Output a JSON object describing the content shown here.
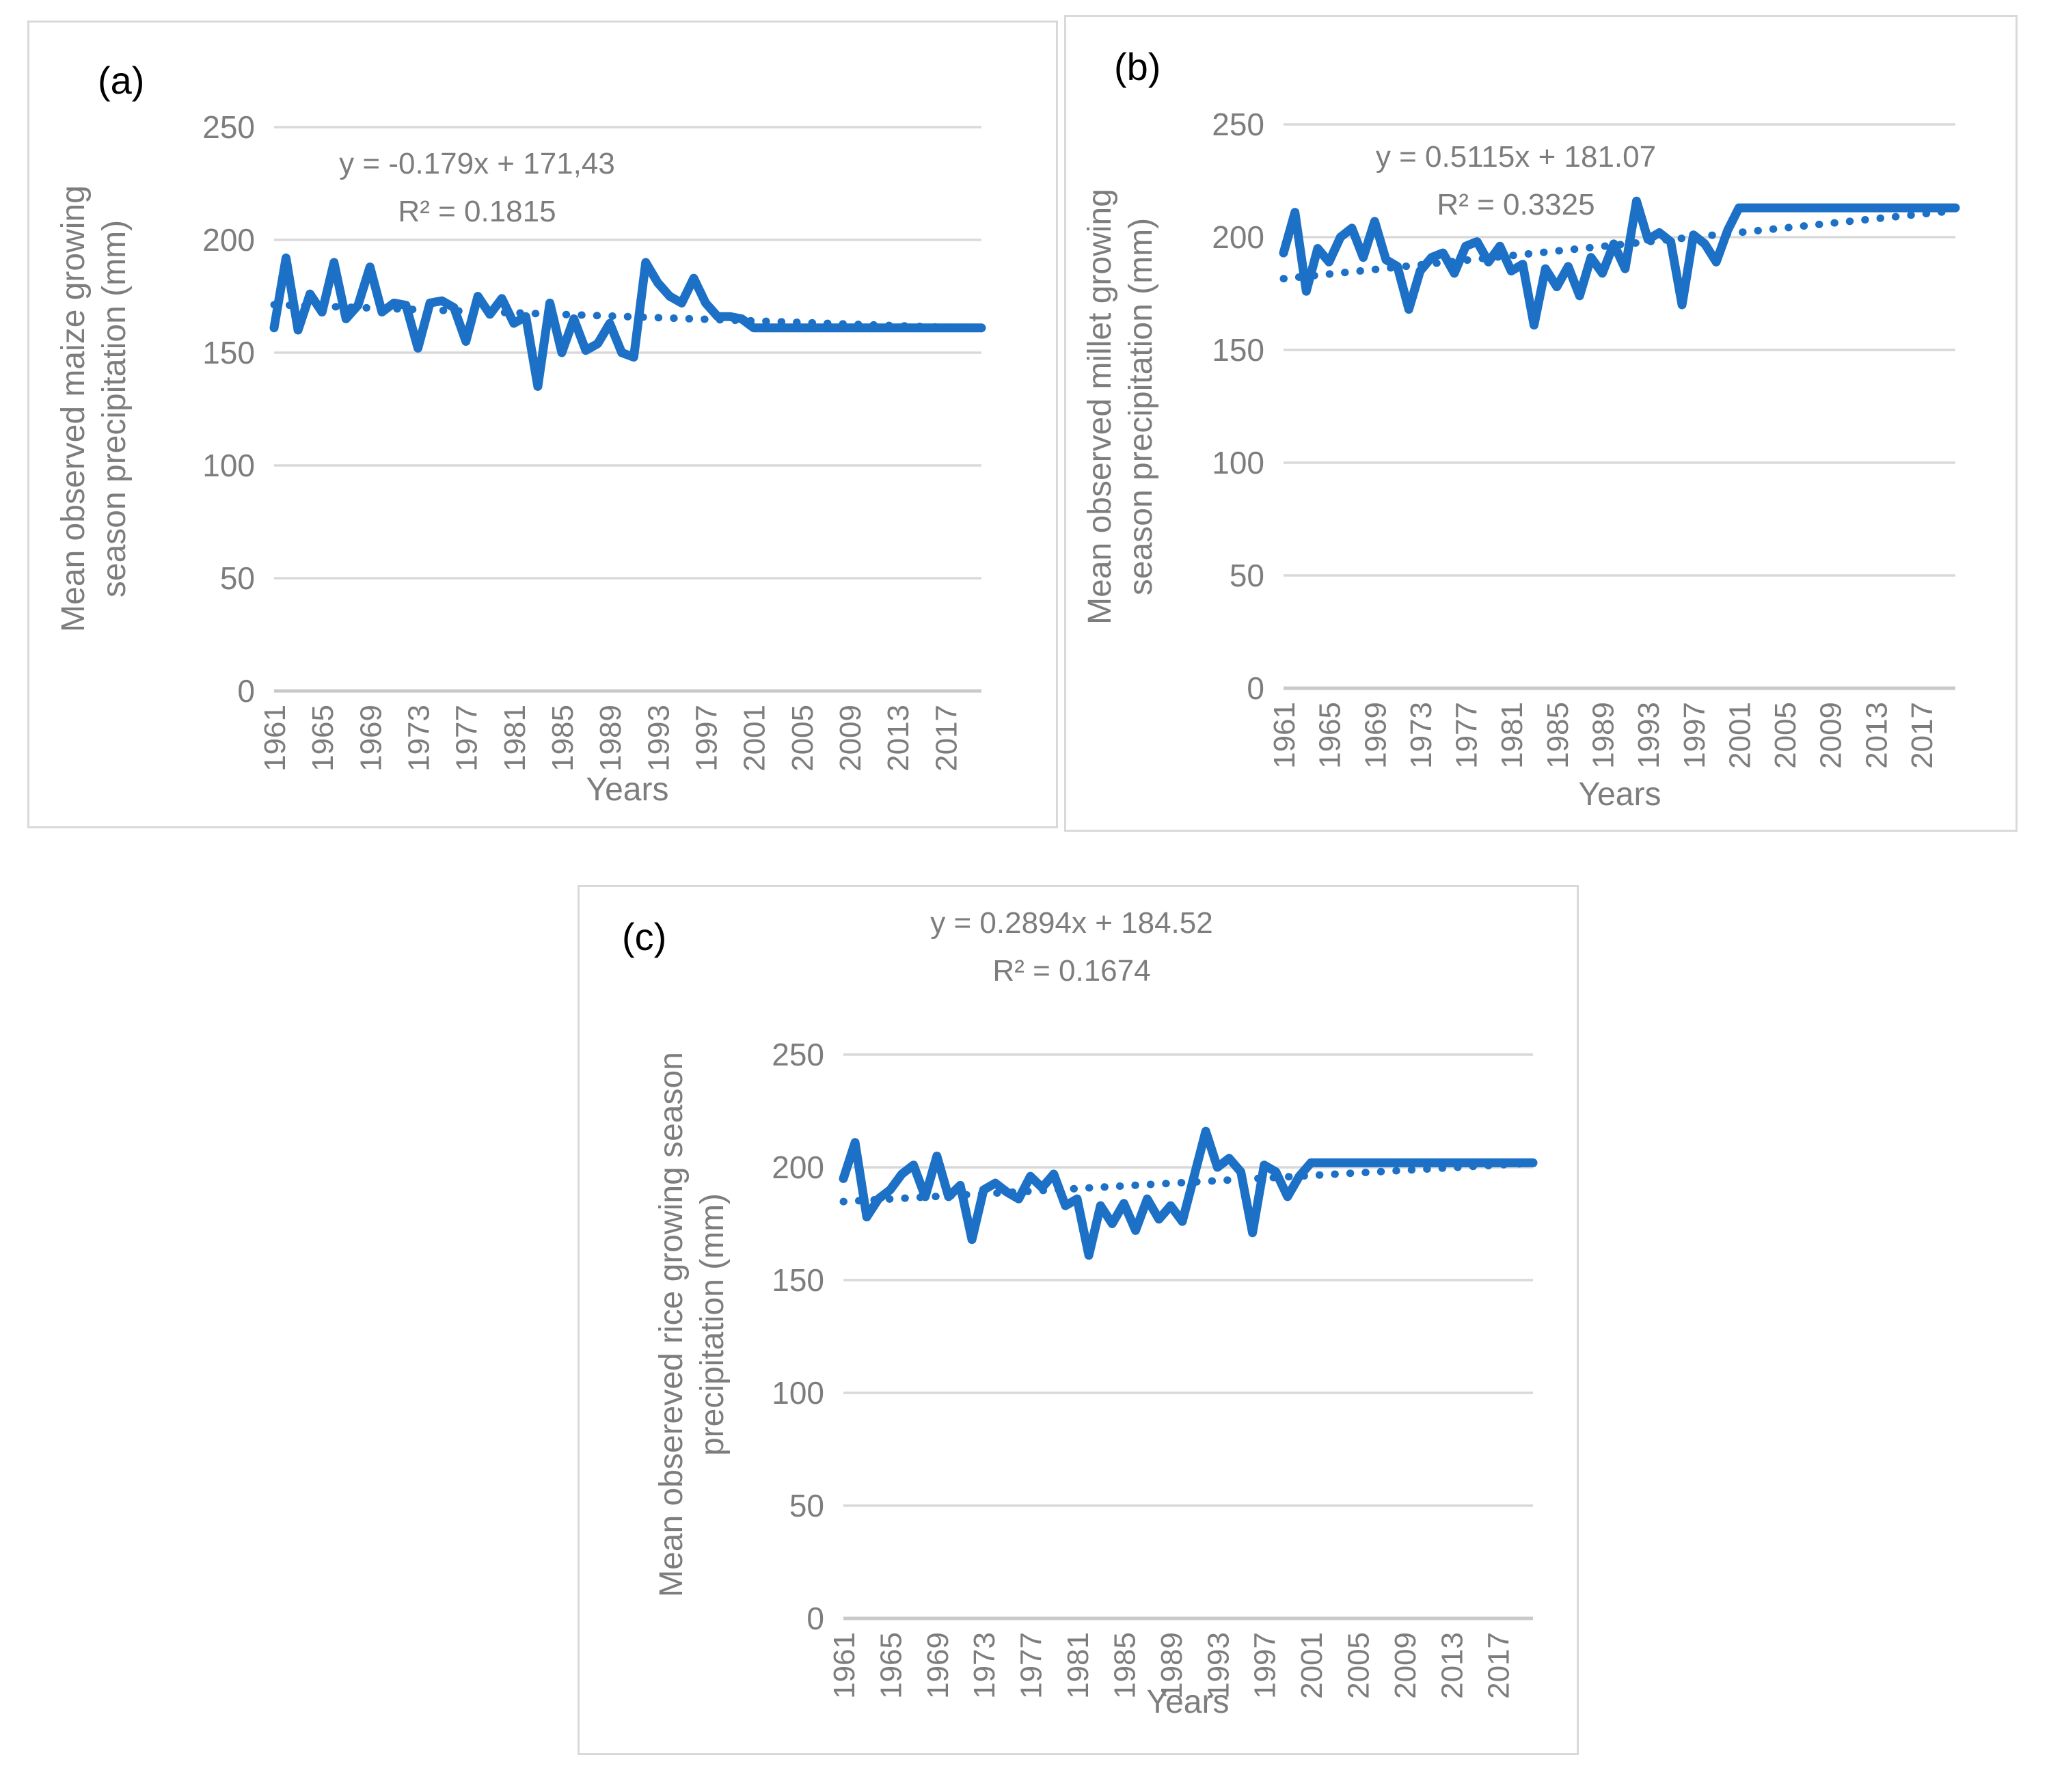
{
  "figure": {
    "background": "#ffffff",
    "panel_border_color": "#d9d9d9"
  },
  "chart_data": [
    {
      "type": "line",
      "panel_label": "(a)",
      "equation": "y = -0.179x + 171,43",
      "r_squared": "R² = 0.1815",
      "xlabel": "Years",
      "ylabel_lines": [
        "Mean observed maize growing",
        "season precipitation (mm)"
      ],
      "x_start": 1961,
      "x_end": 2020,
      "xticks": [
        1961,
        1965,
        1969,
        1973,
        1977,
        1981,
        1985,
        1989,
        1993,
        1997,
        2001,
        2005,
        2009,
        2013,
        2017
      ],
      "yticks": [
        0,
        50,
        100,
        150,
        200,
        250
      ],
      "ylim": [
        0,
        250
      ],
      "grid": true,
      "legend": "none",
      "line_color": "#1c70c5",
      "trend_color": "#1c70c5",
      "grid_color": "#d9d9d9",
      "axis_color": "#c9c9c9",
      "text_color": "#7d7d7d",
      "trend": {
        "slope": -0.179,
        "intercept": 171.43
      },
      "values": [
        161,
        192,
        160,
        176,
        168,
        190,
        165,
        171,
        188,
        168,
        172,
        171,
        152,
        172,
        173,
        170,
        155,
        175,
        167,
        174,
        163,
        166,
        135,
        172,
        150,
        165,
        151,
        154,
        163,
        150,
        148,
        190,
        181,
        175,
        172,
        183,
        172,
        166,
        166,
        165,
        161,
        161,
        161,
        161,
        161,
        161,
        161,
        161,
        161,
        161,
        161,
        161,
        161,
        161,
        161,
        161,
        161,
        161,
        161,
        161
      ]
    },
    {
      "type": "line",
      "panel_label": "(b)",
      "equation": "y = 0.5115x + 181.07",
      "r_squared": "R² = 0.3325",
      "xlabel": "Years",
      "ylabel_lines": [
        "Mean observed millet growing",
        "season precipitation (mm)"
      ],
      "x_start": 1961,
      "x_end": 2020,
      "xticks": [
        1961,
        1965,
        1969,
        1973,
        1977,
        1981,
        1985,
        1989,
        1993,
        1997,
        2001,
        2005,
        2009,
        2013,
        2017
      ],
      "yticks": [
        0,
        50,
        100,
        150,
        200,
        250
      ],
      "ylim": [
        0,
        250
      ],
      "grid": true,
      "legend": "none",
      "line_color": "#1c70c5",
      "trend_color": "#1c70c5",
      "grid_color": "#d9d9d9",
      "axis_color": "#c9c9c9",
      "text_color": "#7d7d7d",
      "trend": {
        "slope": 0.5115,
        "intercept": 181.07
      },
      "values": [
        193,
        211,
        176,
        195,
        189,
        200,
        204,
        191,
        207,
        190,
        187,
        168,
        185,
        191,
        193,
        184,
        196,
        198,
        189,
        196,
        185,
        188,
        161,
        186,
        178,
        187,
        174,
        191,
        184,
        197,
        186,
        216,
        199,
        202,
        198,
        170,
        201,
        197,
        189,
        203,
        213,
        213,
        213,
        213,
        213,
        213,
        213,
        213,
        213,
        213,
        213,
        213,
        213,
        213,
        213,
        213,
        213,
        213,
        213,
        213
      ]
    },
    {
      "type": "line",
      "panel_label": "(c)",
      "equation": "y = 0.2894x + 184.52",
      "r_squared": "R² = 0.1674",
      "xlabel": "Years",
      "ylabel_lines": [
        "Mean obsereved rice growing season",
        "precipitation (mm)"
      ],
      "x_start": 1961,
      "x_end": 2020,
      "xticks": [
        1961,
        1965,
        1969,
        1973,
        1977,
        1981,
        1985,
        1989,
        1993,
        1997,
        2001,
        2005,
        2009,
        2013,
        2017
      ],
      "yticks": [
        0,
        50,
        100,
        150,
        200,
        250
      ],
      "ylim": [
        0,
        250
      ],
      "grid": true,
      "legend": "none",
      "line_color": "#1c70c5",
      "trend_color": "#1c70c5",
      "grid_color": "#d9d9d9",
      "axis_color": "#c9c9c9",
      "text_color": "#7d7d7d",
      "trend": {
        "slope": 0.2894,
        "intercept": 184.52
      },
      "values": [
        195,
        211,
        178,
        186,
        190,
        197,
        201,
        187,
        205,
        187,
        192,
        168,
        190,
        193,
        189,
        186,
        196,
        191,
        197,
        183,
        186,
        161,
        183,
        175,
        184,
        172,
        186,
        177,
        183,
        176,
        196,
        216,
        200,
        204,
        198,
        171,
        201,
        198,
        187,
        196,
        202,
        202,
        202,
        202,
        202,
        202,
        202,
        202,
        202,
        202,
        202,
        202,
        202,
        202,
        202,
        202,
        202,
        202,
        202,
        202
      ]
    }
  ]
}
